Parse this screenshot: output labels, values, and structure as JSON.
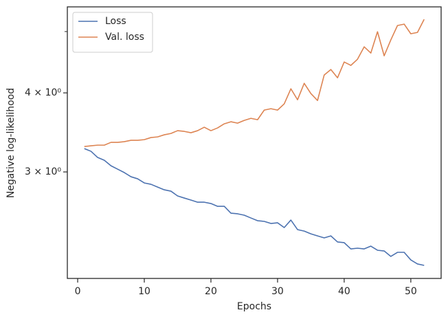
{
  "chart_data": {
    "type": "line",
    "x_label": "Epochs",
    "y_label": "Negative log-likelihood",
    "x": [
      1,
      2,
      3,
      4,
      5,
      6,
      7,
      8,
      9,
      10,
      11,
      12,
      13,
      14,
      15,
      16,
      17,
      18,
      19,
      20,
      21,
      22,
      23,
      24,
      25,
      26,
      27,
      28,
      29,
      30,
      31,
      32,
      33,
      34,
      35,
      36,
      37,
      38,
      39,
      40,
      41,
      42,
      43,
      44,
      45,
      46,
      47,
      48,
      49,
      50,
      51,
      52
    ],
    "series": [
      {
        "name": "Loss",
        "color": "#4c72b0",
        "values": [
          3.266,
          3.234,
          3.162,
          3.13,
          3.068,
          3.03,
          2.993,
          2.948,
          2.926,
          2.882,
          2.868,
          2.839,
          2.811,
          2.797,
          2.749,
          2.728,
          2.708,
          2.687,
          2.687,
          2.674,
          2.647,
          2.647,
          2.582,
          2.576,
          2.563,
          2.537,
          2.512,
          2.506,
          2.487,
          2.493,
          2.45,
          2.518,
          2.432,
          2.419,
          2.395,
          2.377,
          2.36,
          2.377,
          2.325,
          2.319,
          2.267,
          2.273,
          2.267,
          2.29,
          2.256,
          2.25,
          2.206,
          2.239,
          2.239,
          2.178,
          2.146,
          2.135
        ]
      },
      {
        "name": "Val. loss",
        "color": "#dd8452",
        "values": [
          3.291,
          3.299,
          3.307,
          3.307,
          3.341,
          3.341,
          3.349,
          3.366,
          3.366,
          3.374,
          3.4,
          3.408,
          3.434,
          3.451,
          3.486,
          3.477,
          3.46,
          3.486,
          3.53,
          3.486,
          3.521,
          3.574,
          3.601,
          3.583,
          3.619,
          3.646,
          3.628,
          3.757,
          3.776,
          3.757,
          3.843,
          4.06,
          3.901,
          4.142,
          3.99,
          3.891,
          4.269,
          4.355,
          4.226,
          4.476,
          4.421,
          4.521,
          4.73,
          4.624,
          4.997,
          4.578,
          4.85,
          5.111,
          5.137,
          4.96,
          4.985,
          5.227
        ]
      }
    ],
    "xlim": [
      -1.55,
      54.55
    ],
    "xticks": [
      0,
      10,
      20,
      30,
      40,
      50
    ],
    "ylim": [
      2.036,
      5.47
    ],
    "y_scale": "log",
    "yticks": [
      {
        "value": 3,
        "label": "3 × 10⁰"
      },
      {
        "value": 4,
        "label": "4 × 10⁰"
      }
    ],
    "yminorticks": [
      5
    ],
    "legend": "upper left"
  }
}
